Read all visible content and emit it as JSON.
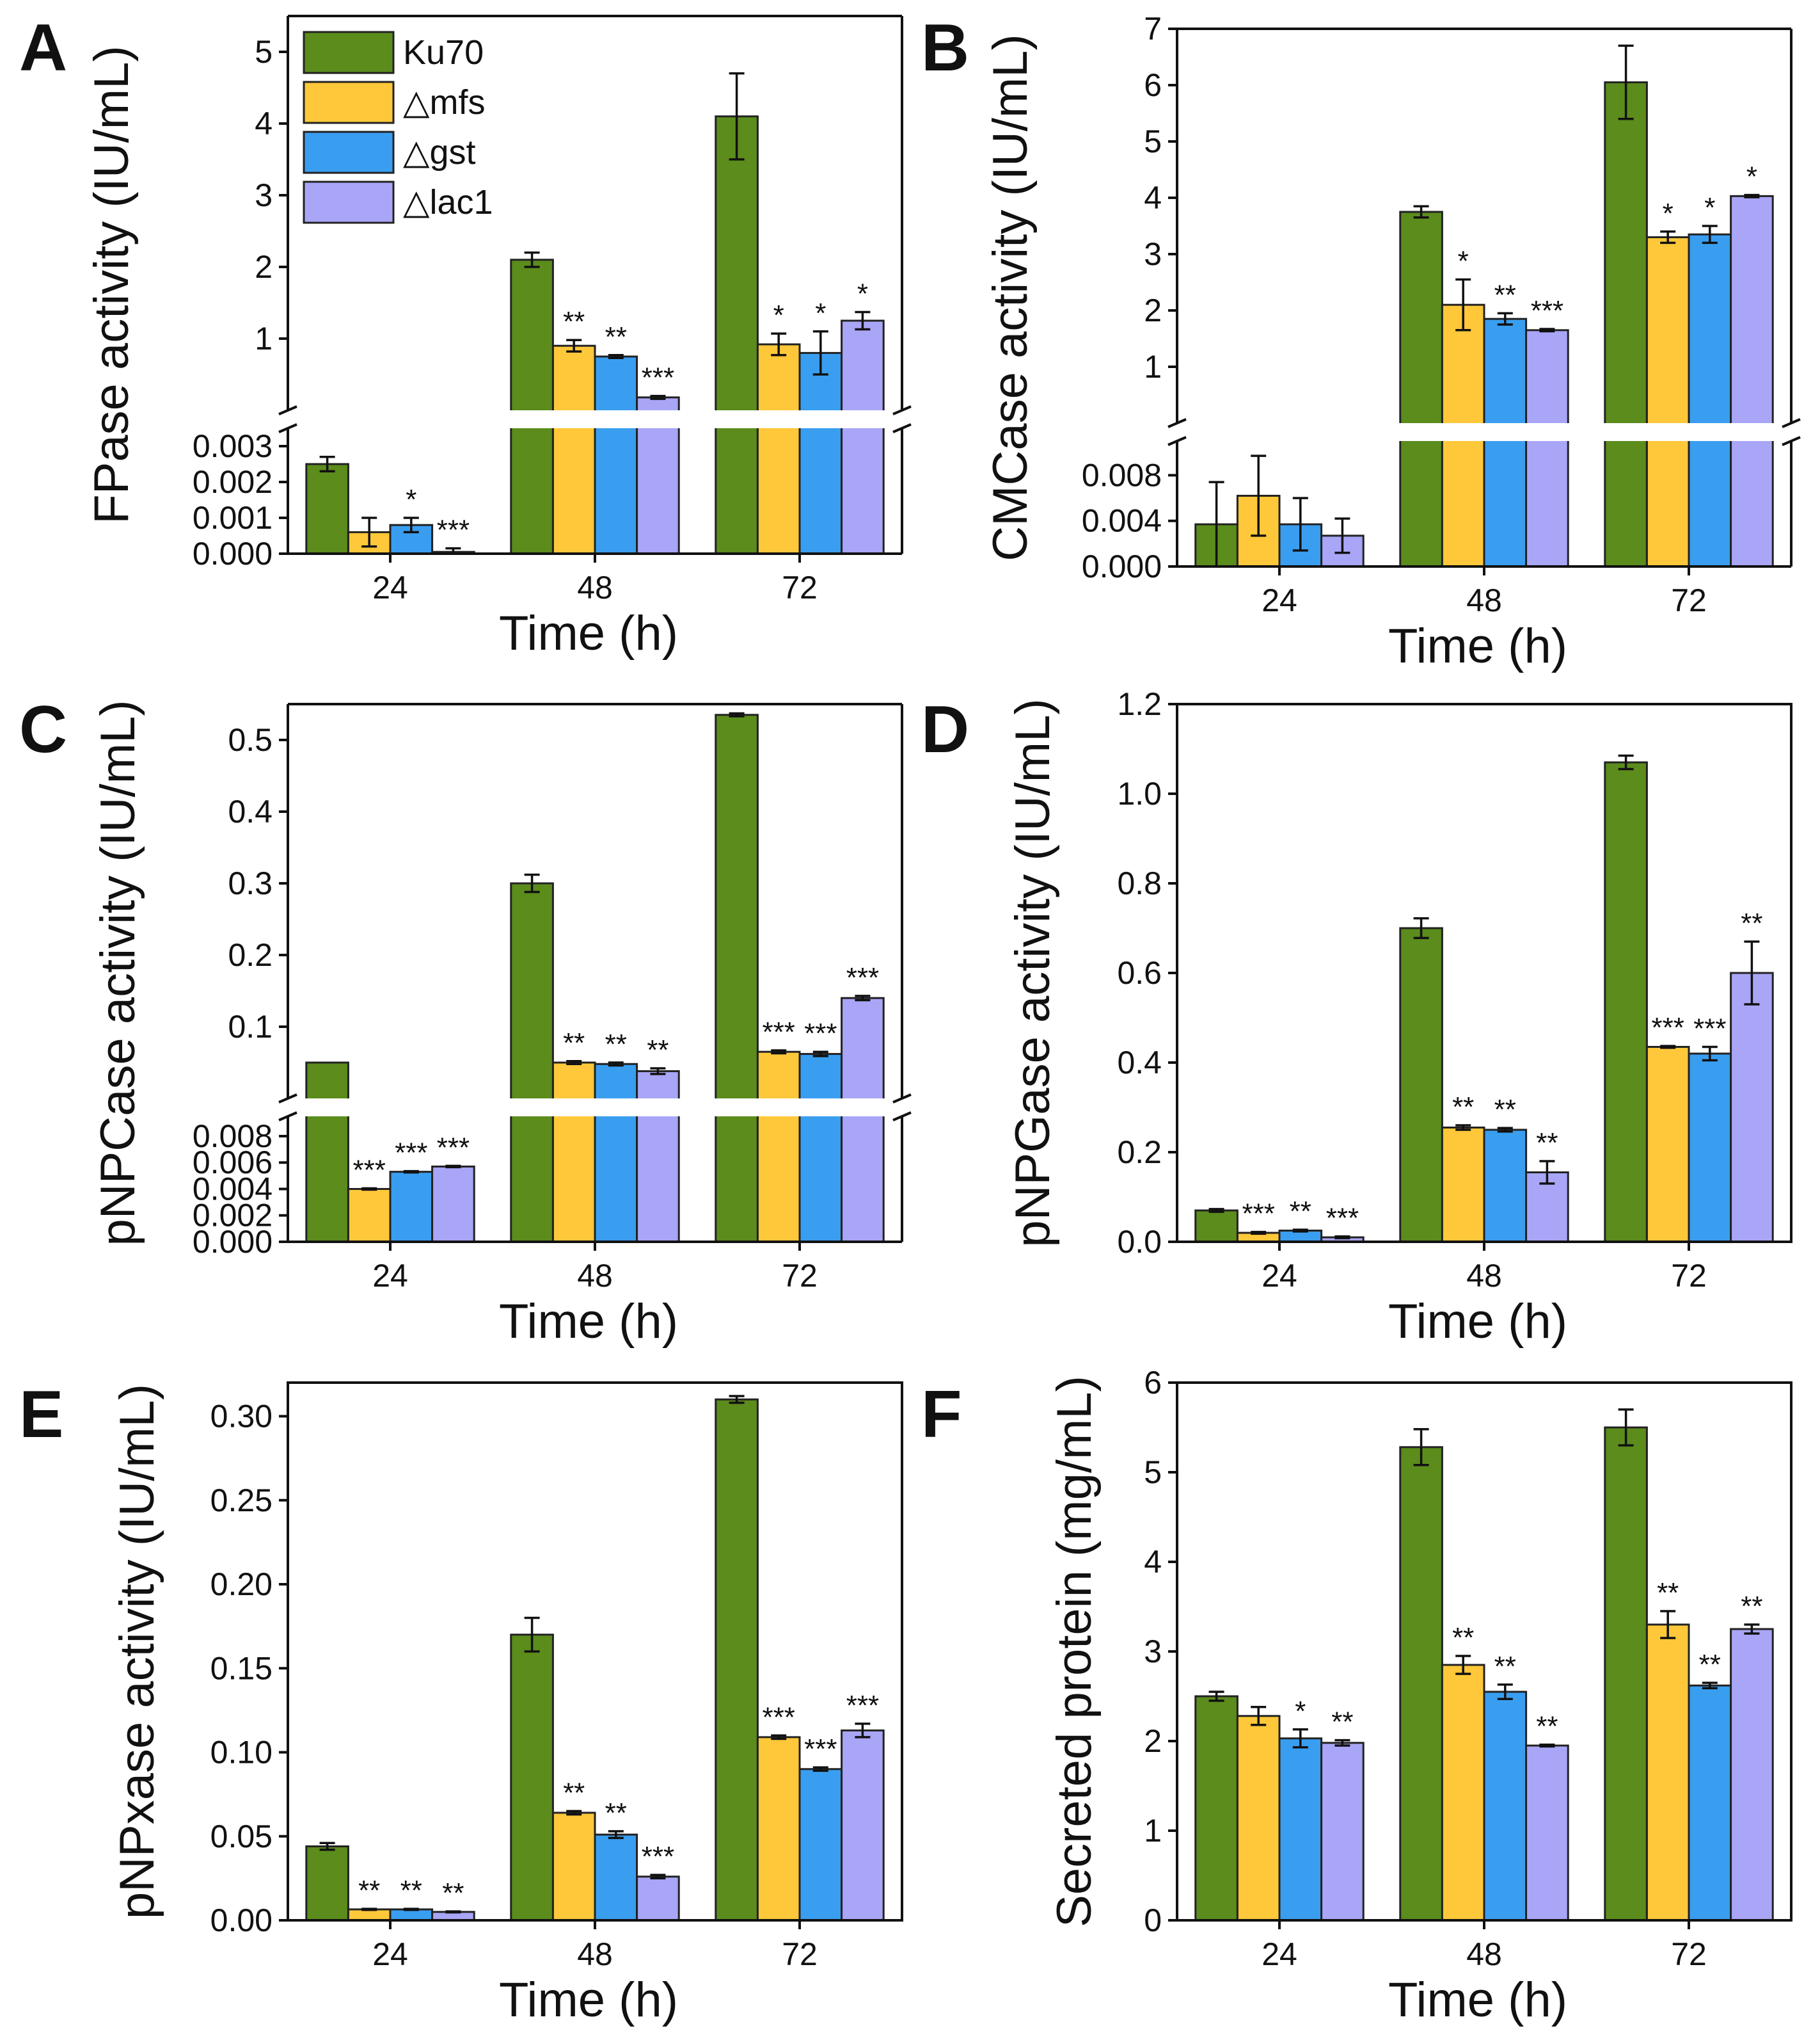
{
  "colors": {
    "Ku70": "#5b8c1c",
    "mfs": "#ffc83a",
    "gst": "#3a9ef0",
    "lac1": "#a9a6f7"
  },
  "legend": {
    "items": [
      {
        "key": "Ku70",
        "label": "Ku70"
      },
      {
        "key": "mfs",
        "label": "△mfs"
      },
      {
        "key": "gst",
        "label": "△gst"
      },
      {
        "key": "lac1",
        "label": "△lac1"
      }
    ]
  },
  "chart_data": [
    {
      "panel": "A",
      "type": "bar",
      "title": "",
      "xlabel": "Time (h)",
      "ylabel": "FPase activity (IU/mL)",
      "categories": [
        "24",
        "48",
        "72"
      ],
      "broken_axis": true,
      "ylim_lower": [
        0,
        0.0035
      ],
      "ylim_upper": [
        0,
        5.5
      ],
      "yticks_lower": [
        "0.000",
        "0.001",
        "0.002",
        "0.003"
      ],
      "yticks_upper": [
        "1",
        "2",
        "3",
        "4",
        "5"
      ],
      "series": [
        {
          "name": "Ku70",
          "values": [
            0.0025,
            2.1,
            4.1
          ],
          "errors": [
            0.0002,
            0.1,
            0.6
          ],
          "sig": [
            "",
            "",
            ""
          ]
        },
        {
          "name": "△mfs",
          "values": [
            0.0006,
            0.9,
            0.92
          ],
          "errors": [
            0.0004,
            0.08,
            0.15
          ],
          "sig": [
            "",
            "**",
            "*"
          ]
        },
        {
          "name": "△gst",
          "values": [
            0.0008,
            0.75,
            0.8
          ],
          "errors": [
            0.0002,
            0.02,
            0.3
          ],
          "sig": [
            "*",
            "**",
            "*"
          ]
        },
        {
          "name": "△lac1",
          "values": [
            5e-05,
            0.18,
            1.25
          ],
          "errors": [
            0.0001,
            0.02,
            0.12
          ],
          "sig": [
            "***",
            "***",
            "*"
          ]
        }
      ]
    },
    {
      "panel": "B",
      "type": "bar",
      "title": "",
      "xlabel": "Time (h)",
      "ylabel": "CMCase activity (IU/mL)",
      "categories": [
        "24",
        "48",
        "72"
      ],
      "broken_axis": true,
      "ylim_lower": [
        0,
        0.011
      ],
      "ylim_upper": [
        0,
        7
      ],
      "yticks_lower": [
        "0.000",
        "0.004",
        "0.008"
      ],
      "yticks_upper": [
        "1",
        "2",
        "3",
        "4",
        "5",
        "6",
        "7"
      ],
      "series": [
        {
          "name": "Ku70",
          "values": [
            0.0037,
            3.75,
            6.05
          ],
          "errors": [
            0.0037,
            0.1,
            0.65
          ],
          "sig": [
            "",
            "",
            ""
          ]
        },
        {
          "name": "△mfs",
          "values": [
            0.0062,
            2.1,
            3.3
          ],
          "errors": [
            0.0035,
            0.45,
            0.1
          ],
          "sig": [
            "",
            "*",
            "*"
          ]
        },
        {
          "name": "△gst",
          "values": [
            0.0037,
            1.85,
            3.35
          ],
          "errors": [
            0.0023,
            0.1,
            0.15
          ],
          "sig": [
            "",
            "**",
            "*"
          ]
        },
        {
          "name": "△lac1",
          "values": [
            0.0027,
            1.65,
            4.03
          ],
          "errors": [
            0.0015,
            0.02,
            0.02
          ],
          "sig": [
            "",
            "***",
            "*"
          ]
        }
      ]
    },
    {
      "panel": "C",
      "type": "bar",
      "title": "",
      "xlabel": "Time (h)",
      "ylabel": "pNPCase activity (IU/mL)",
      "categories": [
        "24",
        "48",
        "72"
      ],
      "broken_axis": true,
      "ylim_lower": [
        0,
        0.0095
      ],
      "ylim_upper": [
        0,
        0.55
      ],
      "yticks_lower": [
        "0.000",
        "0.002",
        "0.004",
        "0.006",
        "0.008"
      ],
      "yticks_upper": [
        "0.1",
        "0.2",
        "0.3",
        "0.4",
        "0.5"
      ],
      "series": [
        {
          "name": "Ku70",
          "values": [
            0.05,
            0.3,
            0.535
          ],
          "errors": [
            0,
            0.012,
            0.002
          ],
          "sig": [
            "",
            "",
            ""
          ]
        },
        {
          "name": "△mfs",
          "values": [
            0.004,
            0.05,
            0.065
          ],
          "errors": [
            5e-05,
            0.002,
            0.002
          ],
          "sig": [
            "***",
            "**",
            "***"
          ]
        },
        {
          "name": "△gst",
          "values": [
            0.0053,
            0.048,
            0.062
          ],
          "errors": [
            5e-05,
            0.002,
            0.003
          ],
          "sig": [
            "***",
            "**",
            "***"
          ]
        },
        {
          "name": "△lac1",
          "values": [
            0.0057,
            0.038,
            0.14
          ],
          "errors": [
            5e-05,
            0.004,
            0.003
          ],
          "sig": [
            "***",
            "**",
            "***"
          ]
        }
      ]
    },
    {
      "panel": "D",
      "type": "bar",
      "title": "",
      "xlabel": "Time (h)",
      "ylabel": "pNPGase activity (IU/mL)",
      "categories": [
        "24",
        "48",
        "72"
      ],
      "broken_axis": false,
      "ylim": [
        0,
        1.2
      ],
      "yticks": [
        "0.0",
        "0.2",
        "0.4",
        "0.6",
        "0.8",
        "1.0",
        "1.2"
      ],
      "series": [
        {
          "name": "Ku70",
          "values": [
            0.07,
            0.7,
            1.07
          ],
          "errors": [
            0.003,
            0.022,
            0.015
          ],
          "sig": [
            "",
            "",
            ""
          ]
        },
        {
          "name": "△mfs",
          "values": [
            0.02,
            0.255,
            0.435
          ],
          "errors": [
            0.002,
            0.005,
            0.002
          ],
          "sig": [
            "***",
            "**",
            "***"
          ]
        },
        {
          "name": "△gst",
          "values": [
            0.025,
            0.25,
            0.42
          ],
          "errors": [
            0.002,
            0.004,
            0.015
          ],
          "sig": [
            "**",
            "**",
            "***"
          ]
        },
        {
          "name": "△lac1",
          "values": [
            0.01,
            0.155,
            0.6
          ],
          "errors": [
            0.002,
            0.025,
            0.07
          ],
          "sig": [
            "***",
            "**",
            "**"
          ]
        }
      ]
    },
    {
      "panel": "E",
      "type": "bar",
      "title": "",
      "xlabel": "Time (h)",
      "ylabel": "pNPxase activity (IU/mL)",
      "categories": [
        "24",
        "48",
        "72"
      ],
      "broken_axis": false,
      "ylim": [
        0,
        0.32
      ],
      "yticks": [
        "0.00",
        "0.05",
        "0.10",
        "0.15",
        "0.20",
        "0.25",
        "0.30"
      ],
      "series": [
        {
          "name": "Ku70",
          "values": [
            0.044,
            0.17,
            0.31
          ],
          "errors": [
            0.002,
            0.01,
            0.002
          ],
          "sig": [
            "",
            "",
            ""
          ]
        },
        {
          "name": "△mfs",
          "values": [
            0.0065,
            0.064,
            0.109
          ],
          "errors": [
            0.0003,
            0.001,
            0.001
          ],
          "sig": [
            "**",
            "**",
            "***"
          ]
        },
        {
          "name": "△gst",
          "values": [
            0.0065,
            0.051,
            0.09
          ],
          "errors": [
            0.0003,
            0.002,
            0.001
          ],
          "sig": [
            "**",
            "**",
            "***"
          ]
        },
        {
          "name": "△lac1",
          "values": [
            0.005,
            0.026,
            0.113
          ],
          "errors": [
            0.0003,
            0.001,
            0.004
          ],
          "sig": [
            "**",
            "***",
            "***"
          ]
        }
      ]
    },
    {
      "panel": "F",
      "type": "bar",
      "title": "",
      "xlabel": "Time (h)",
      "ylabel": "Secreted protein (mg/mL)",
      "categories": [
        "24",
        "48",
        "72"
      ],
      "broken_axis": false,
      "ylim": [
        0,
        6
      ],
      "yticks": [
        "0",
        "1",
        "2",
        "3",
        "4",
        "5",
        "6"
      ],
      "series": [
        {
          "name": "Ku70",
          "values": [
            2.5,
            5.28,
            5.5
          ],
          "errors": [
            0.05,
            0.2,
            0.2
          ],
          "sig": [
            "",
            "",
            ""
          ]
        },
        {
          "name": "△mfs",
          "values": [
            2.28,
            2.85,
            3.3
          ],
          "errors": [
            0.1,
            0.1,
            0.15
          ],
          "sig": [
            "",
            "**",
            "**"
          ]
        },
        {
          "name": "△gst",
          "values": [
            2.03,
            2.55,
            2.62
          ],
          "errors": [
            0.1,
            0.08,
            0.03
          ],
          "sig": [
            "*",
            "**",
            "**"
          ]
        },
        {
          "name": "△lac1",
          "values": [
            1.98,
            1.95,
            3.25
          ],
          "errors": [
            0.03,
            0.01,
            0.05
          ],
          "sig": [
            "**",
            "**",
            "**"
          ]
        }
      ]
    }
  ]
}
